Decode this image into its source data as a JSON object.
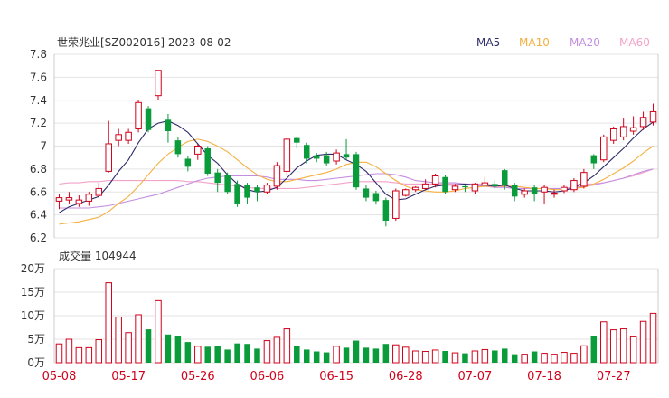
{
  "header": {
    "stock_label": "世荣兆业[SZ002016] 2023-08-02",
    "legend": [
      {
        "label": "MA5",
        "color": "#2b2b6b"
      },
      {
        "label": "MA10",
        "color": "#f5b041"
      },
      {
        "label": "MA20",
        "color": "#c48ee0"
      },
      {
        "label": "MA60",
        "color": "#f2a2c8"
      }
    ]
  },
  "volume_header": {
    "label": "成交量 104944"
  },
  "colors": {
    "up": "#d0021b",
    "down": "#0a9b3a",
    "grid": "#e3e3e3",
    "date": "#d0021b"
  },
  "chart_data": {
    "type": "candlestick",
    "price_axis": {
      "ticks": [
        "7.8",
        "7.6",
        "7.4",
        "7.2",
        "7",
        "6.8",
        "6.6",
        "6.4",
        "6.2"
      ],
      "ylim": [
        6.2,
        7.8
      ]
    },
    "volume_axis": {
      "ticks": [
        "20万",
        "15万",
        "10万",
        "5万",
        "0万"
      ],
      "ylim": [
        0,
        200000
      ]
    },
    "date_labels": [
      {
        "label": "05-08",
        "index": 0
      },
      {
        "label": "05-17",
        "index": 7
      },
      {
        "label": "05-26",
        "index": 14
      },
      {
        "label": "06-06",
        "index": 21
      },
      {
        "label": "06-15",
        "index": 28
      },
      {
        "label": "06-28",
        "index": 35
      },
      {
        "label": "07-07",
        "index": 42
      },
      {
        "label": "07-18",
        "index": 49
      },
      {
        "label": "07-27",
        "index": 56
      }
    ],
    "candles": [
      [
        6.52,
        6.55,
        6.45,
        6.58,
        40000
      ],
      [
        6.53,
        6.55,
        6.5,
        6.6,
        50000
      ],
      [
        6.5,
        6.53,
        6.47,
        6.57,
        32000
      ],
      [
        6.52,
        6.58,
        6.48,
        6.6,
        32000
      ],
      [
        6.57,
        6.63,
        6.55,
        6.68,
        49000
      ],
      [
        6.78,
        7.02,
        6.77,
        7.22,
        170000
      ],
      [
        7.05,
        7.1,
        7.0,
        7.15,
        97000
      ],
      [
        7.05,
        7.12,
        7.02,
        7.15,
        64000
      ],
      [
        7.15,
        7.38,
        7.12,
        7.4,
        102000
      ],
      [
        7.33,
        7.14,
        7.12,
        7.35,
        71000
      ],
      [
        7.44,
        7.66,
        7.4,
        7.66,
        132000
      ],
      [
        7.23,
        7.13,
        7.03,
        7.28,
        60000
      ],
      [
        7.05,
        6.93,
        6.9,
        7.08,
        57000
      ],
      [
        6.89,
        6.82,
        6.78,
        6.91,
        44000
      ],
      [
        6.93,
        7.0,
        6.88,
        7.02,
        35000
      ],
      [
        6.98,
        6.76,
        6.74,
        7.0,
        34000
      ],
      [
        6.77,
        6.68,
        6.6,
        6.8,
        35000
      ],
      [
        6.75,
        6.6,
        6.58,
        6.77,
        28000
      ],
      [
        6.67,
        6.5,
        6.47,
        6.7,
        41000
      ],
      [
        6.66,
        6.55,
        6.5,
        6.68,
        40000
      ],
      [
        6.64,
        6.6,
        6.52,
        6.66,
        30000
      ],
      [
        6.6,
        6.66,
        6.58,
        6.68,
        47000
      ],
      [
        6.65,
        6.83,
        6.62,
        6.86,
        54000
      ],
      [
        6.78,
        7.06,
        6.75,
        7.07,
        72000
      ],
      [
        7.07,
        7.03,
        6.98,
        7.08,
        36000
      ],
      [
        7.01,
        6.89,
        6.85,
        7.03,
        28000
      ],
      [
        6.92,
        6.89,
        6.86,
        6.94,
        24000
      ],
      [
        6.92,
        6.85,
        6.83,
        6.95,
        22000
      ],
      [
        6.87,
        6.94,
        6.84,
        6.97,
        35000
      ],
      [
        6.93,
        6.9,
        6.88,
        7.06,
        32000
      ],
      [
        6.93,
        6.64,
        6.62,
        6.95,
        47000
      ],
      [
        6.63,
        6.55,
        6.52,
        6.66,
        32000
      ],
      [
        6.59,
        6.52,
        6.49,
        6.61,
        30000
      ],
      [
        6.53,
        6.35,
        6.3,
        6.55,
        40000
      ],
      [
        6.37,
        6.61,
        6.35,
        6.63,
        38000
      ],
      [
        6.57,
        6.62,
        6.56,
        6.63,
        33000
      ],
      [
        6.62,
        6.64,
        6.6,
        6.65,
        25000
      ],
      [
        6.63,
        6.67,
        6.62,
        6.71,
        24000
      ],
      [
        6.67,
        6.74,
        6.64,
        6.76,
        27000
      ],
      [
        6.73,
        6.6,
        6.58,
        6.75,
        25000
      ],
      [
        6.62,
        6.65,
        6.6,
        6.67,
        21000
      ],
      [
        6.65,
        6.64,
        6.6,
        6.66,
        20000
      ],
      [
        6.61,
        6.67,
        6.58,
        6.68,
        25000
      ],
      [
        6.66,
        6.68,
        6.64,
        6.73,
        28000
      ],
      [
        6.67,
        6.65,
        6.63,
        6.7,
        26000
      ],
      [
        6.79,
        6.66,
        6.62,
        6.8,
        30000
      ],
      [
        6.66,
        6.56,
        6.52,
        6.68,
        18000
      ],
      [
        6.58,
        6.61,
        6.55,
        6.63,
        18000
      ],
      [
        6.64,
        6.58,
        6.52,
        6.66,
        24000
      ],
      [
        6.6,
        6.64,
        6.5,
        6.66,
        20000
      ],
      [
        6.58,
        6.59,
        6.55,
        6.62,
        18000
      ],
      [
        6.61,
        6.64,
        6.59,
        6.66,
        22000
      ],
      [
        6.62,
        6.7,
        6.6,
        6.72,
        20000
      ],
      [
        6.65,
        6.77,
        6.63,
        6.8,
        36000
      ],
      [
        6.92,
        6.85,
        6.8,
        6.93,
        57000
      ],
      [
        6.88,
        7.08,
        6.86,
        7.1,
        87000
      ],
      [
        7.05,
        7.15,
        7.02,
        7.17,
        70000
      ],
      [
        7.08,
        7.17,
        7.05,
        7.24,
        72000
      ],
      [
        7.13,
        7.16,
        7.1,
        7.26,
        55000
      ],
      [
        7.17,
        7.25,
        7.14,
        7.3,
        88000
      ],
      [
        7.21,
        7.3,
        7.18,
        7.37,
        105000
      ]
    ],
    "ma5": [
      6.42,
      6.47,
      6.5,
      6.53,
      6.56,
      6.66,
      6.78,
      6.88,
      7.03,
      7.15,
      7.2,
      7.22,
      7.18,
      7.12,
      7.02,
      6.92,
      6.85,
      6.75,
      6.67,
      6.62,
      6.6,
      6.61,
      6.64,
      6.72,
      6.81,
      6.87,
      6.92,
      6.93,
      6.93,
      6.88,
      6.84,
      6.78,
      6.68,
      6.58,
      6.53,
      6.54,
      6.58,
      6.62,
      6.65,
      6.66,
      6.66,
      6.67,
      6.66,
      6.66,
      6.65,
      6.66,
      6.63,
      6.61,
      6.61,
      6.61,
      6.6,
      6.61,
      6.64,
      6.68,
      6.74,
      6.82,
      6.9,
      6.98,
      7.07,
      7.15,
      7.21
    ],
    "ma10": [
      6.32,
      6.33,
      6.34,
      6.36,
      6.38,
      6.43,
      6.5,
      6.56,
      6.65,
      6.75,
      6.85,
      6.93,
      6.99,
      7.04,
      7.06,
      7.04,
      7.0,
      6.95,
      6.88,
      6.81,
      6.75,
      6.71,
      6.69,
      6.69,
      6.71,
      6.73,
      6.75,
      6.77,
      6.8,
      6.84,
      6.86,
      6.86,
      6.82,
      6.76,
      6.7,
      6.65,
      6.62,
      6.61,
      6.6,
      6.6,
      6.61,
      6.63,
      6.64,
      6.65,
      6.65,
      6.65,
      6.65,
      6.64,
      6.63,
      6.63,
      6.62,
      6.62,
      6.63,
      6.64,
      6.67,
      6.71,
      6.76,
      6.81,
      6.87,
      6.94,
      7.0
    ],
    "ma20": [
      6.46,
      6.46,
      6.46,
      6.46,
      6.47,
      6.48,
      6.5,
      6.52,
      6.54,
      6.56,
      6.58,
      6.61,
      6.64,
      6.67,
      6.7,
      6.72,
      6.73,
      6.74,
      6.74,
      6.74,
      6.74,
      6.73,
      6.71,
      6.71,
      6.71,
      6.7,
      6.7,
      6.71,
      6.72,
      6.73,
      6.74,
      6.75,
      6.76,
      6.76,
      6.75,
      6.73,
      6.7,
      6.69,
      6.68,
      6.68,
      6.68,
      6.67,
      6.66,
      6.65,
      6.64,
      6.64,
      6.63,
      6.63,
      6.63,
      6.63,
      6.63,
      6.63,
      6.64,
      6.65,
      6.66,
      6.68,
      6.7,
      6.72,
      6.75,
      6.78,
      6.8
    ],
    "ma60": [
      6.67,
      6.68,
      6.68,
      6.69,
      6.69,
      6.7,
      6.7,
      6.7,
      6.7,
      6.7,
      6.7,
      6.7,
      6.7,
      6.69,
      6.69,
      6.68,
      6.67,
      6.66,
      6.65,
      6.64,
      6.63,
      6.63,
      6.63,
      6.63,
      6.63,
      6.64,
      6.65,
      6.66,
      6.67,
      6.68,
      6.69,
      6.69,
      6.69,
      6.69,
      6.68,
      6.67,
      6.67,
      6.67,
      6.67,
      6.67,
      6.67,
      6.67,
      6.67,
      6.67,
      6.66,
      6.66,
      6.66,
      6.66,
      6.66,
      6.66,
      6.66,
      6.66,
      6.66,
      6.67,
      6.67,
      6.68,
      6.7,
      6.72,
      6.74,
      6.77,
      6.8
    ]
  }
}
